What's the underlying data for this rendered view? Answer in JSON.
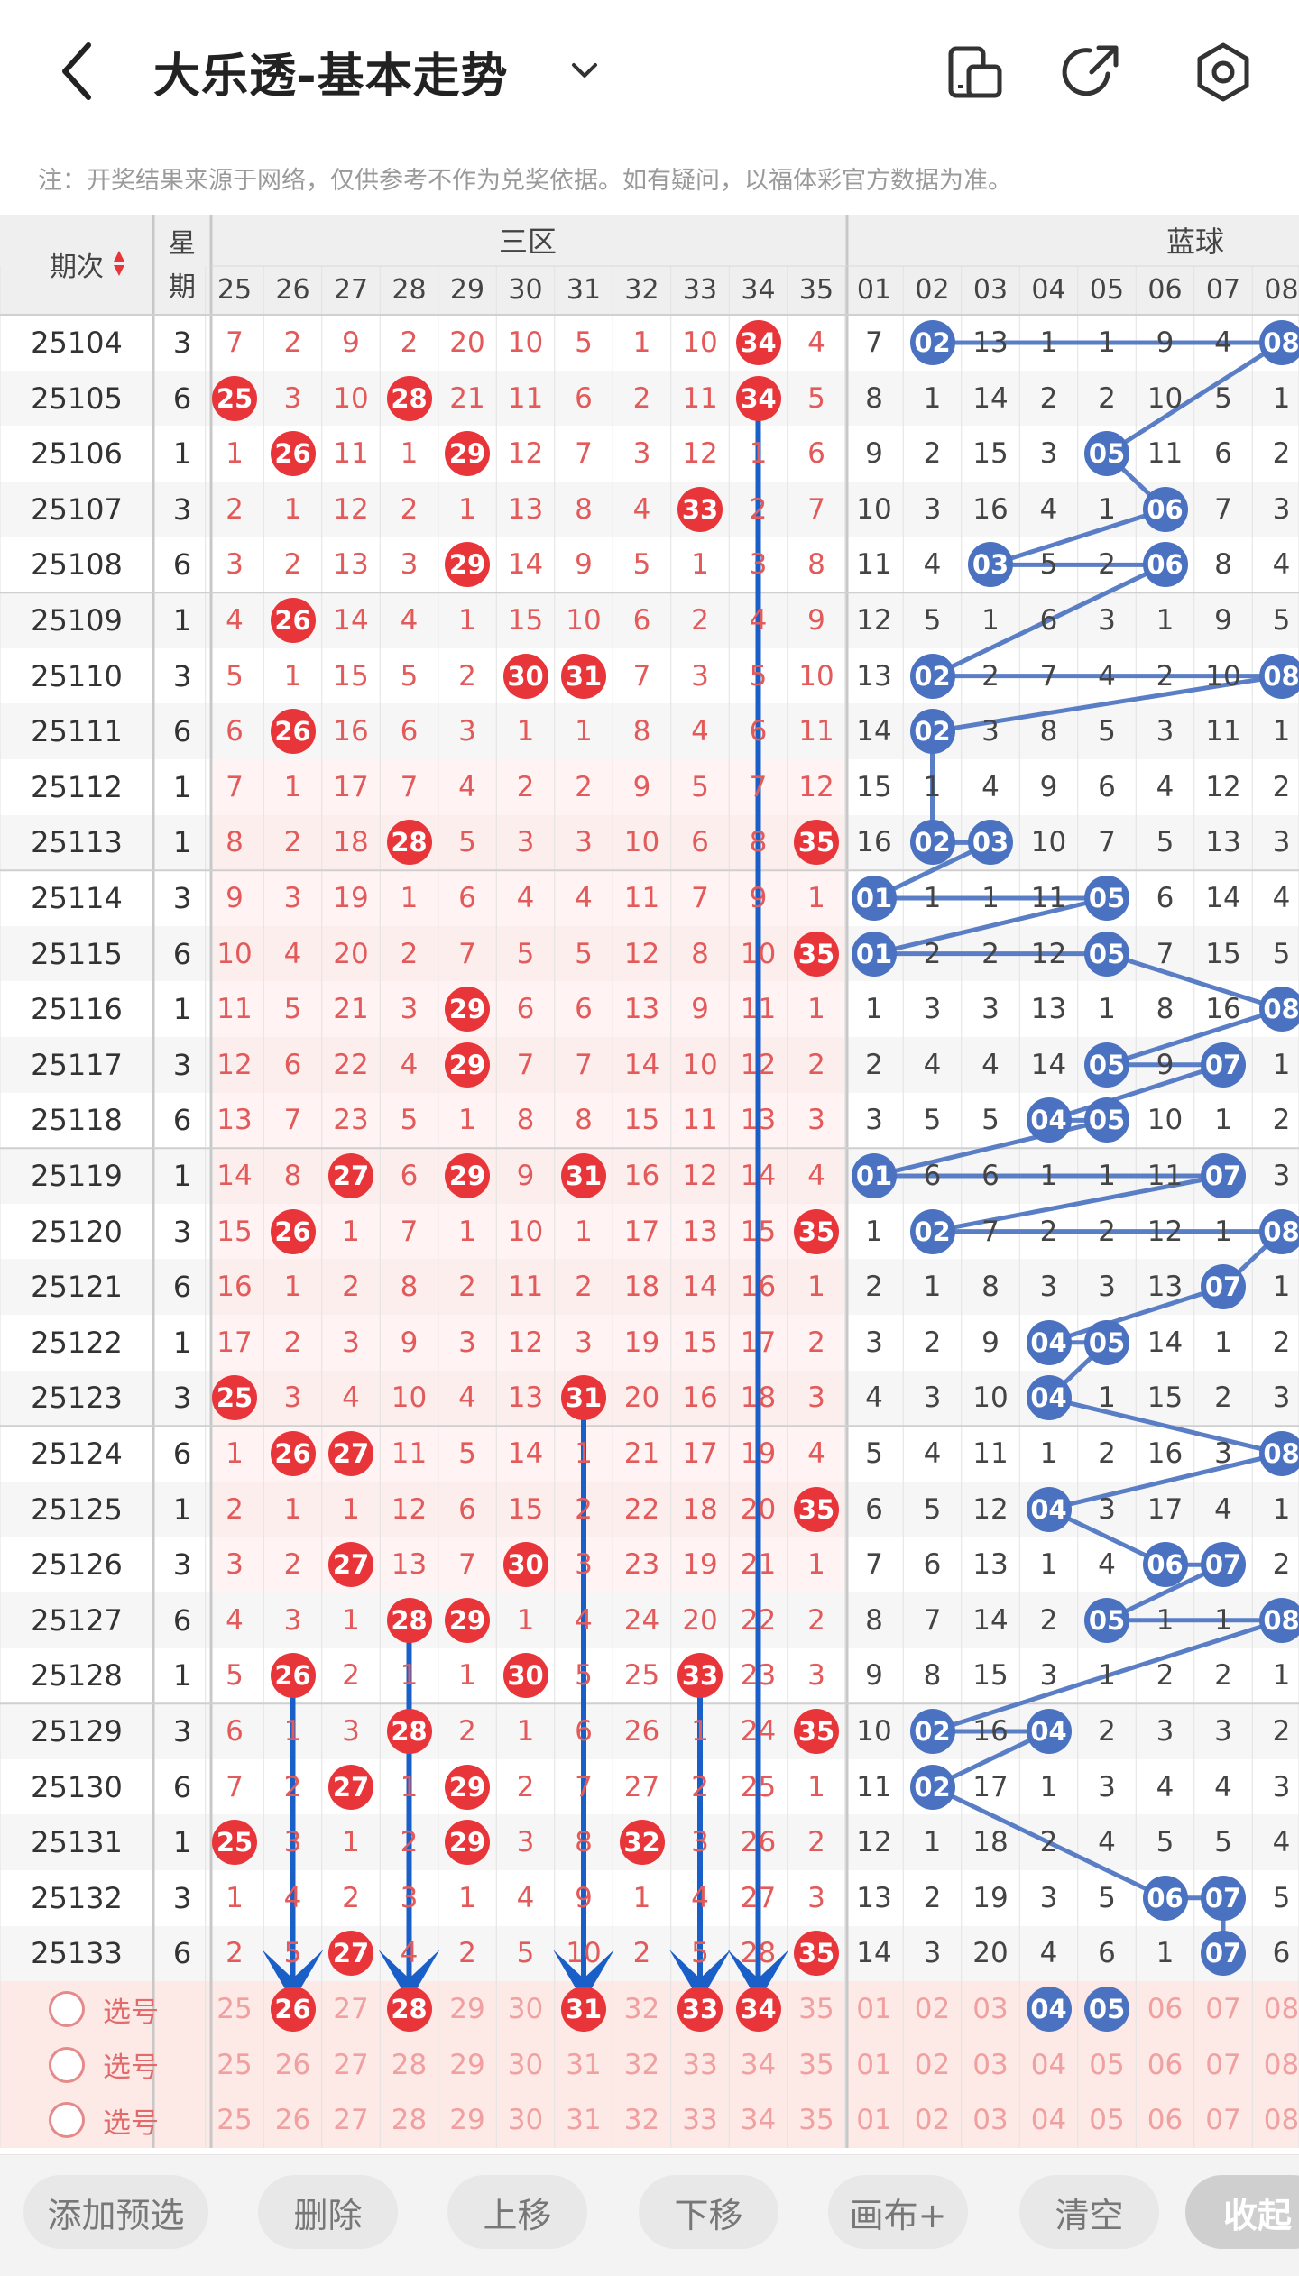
{
  "header": {
    "title": "大乐透-基本走势",
    "back_icon": "chevron-left-icon",
    "dropdown_icon": "chevron-down-icon",
    "icons": [
      "phone-rotate-icon",
      "share-icon",
      "settings-icon"
    ]
  },
  "notice": "注：开奖结果来源于网络，仅供参考不作为兑奖依据。如有疑问，以福体彩官方数据为准。",
  "table": {
    "period_header": "期次",
    "week_header": "星期",
    "section_front": "三区",
    "section_back": "蓝球",
    "front_cols": [
      "25",
      "26",
      "27",
      "28",
      "29",
      "30",
      "31",
      "32",
      "33",
      "34",
      "35"
    ],
    "back_cols": [
      "01",
      "02",
      "03",
      "04",
      "05",
      "06",
      "07",
      "08"
    ],
    "rows": [
      {
        "issue": "25104",
        "week": "3",
        "front": [
          "7",
          "2",
          "9",
          "2",
          "20",
          "10",
          "5",
          "1",
          "10",
          "34",
          "4"
        ],
        "back": [
          "7",
          "02",
          "13",
          "1",
          "1",
          "9",
          "4",
          "08"
        ]
      },
      {
        "issue": "25105",
        "week": "6",
        "front": [
          "25",
          "3",
          "10",
          "28",
          "21",
          "11",
          "6",
          "2",
          "11",
          "34",
          "5"
        ],
        "back": [
          "8",
          "1",
          "14",
          "2",
          "2",
          "10",
          "5",
          "1"
        ]
      },
      {
        "issue": "25106",
        "week": "1",
        "front": [
          "1",
          "26",
          "11",
          "1",
          "29",
          "12",
          "7",
          "3",
          "12",
          "1",
          "6"
        ],
        "back": [
          "9",
          "2",
          "15",
          "3",
          "05",
          "11",
          "6",
          "2"
        ]
      },
      {
        "issue": "25107",
        "week": "3",
        "front": [
          "2",
          "1",
          "12",
          "2",
          "1",
          "13",
          "8",
          "4",
          "33",
          "2",
          "7"
        ],
        "back": [
          "10",
          "3",
          "16",
          "4",
          "1",
          "06",
          "7",
          "3"
        ]
      },
      {
        "issue": "25108",
        "week": "6",
        "front": [
          "3",
          "2",
          "13",
          "3",
          "29",
          "14",
          "9",
          "5",
          "1",
          "3",
          "8"
        ],
        "back": [
          "11",
          "4",
          "03",
          "5",
          "2",
          "06",
          "8",
          "4"
        ]
      },
      {
        "issue": "25109",
        "week": "1",
        "front": [
          "4",
          "26",
          "14",
          "4",
          "1",
          "15",
          "10",
          "6",
          "2",
          "4",
          "9"
        ],
        "back": [
          "12",
          "5",
          "1",
          "6",
          "3",
          "1",
          "9",
          "5"
        ]
      },
      {
        "issue": "25110",
        "week": "3",
        "front": [
          "5",
          "1",
          "15",
          "5",
          "2",
          "30",
          "31",
          "7",
          "3",
          "5",
          "10"
        ],
        "back": [
          "13",
          "02",
          "2",
          "7",
          "4",
          "2",
          "10",
          "08"
        ]
      },
      {
        "issue": "25111",
        "week": "6",
        "front": [
          "6",
          "26",
          "16",
          "6",
          "3",
          "1",
          "1",
          "8",
          "4",
          "6",
          "11"
        ],
        "back": [
          "14",
          "02",
          "3",
          "8",
          "5",
          "3",
          "11",
          "1"
        ]
      },
      {
        "issue": "25112",
        "week": "1",
        "front": [
          "7",
          "1",
          "17",
          "7",
          "4",
          "2",
          "2",
          "9",
          "5",
          "7",
          "12"
        ],
        "back": [
          "15",
          "1",
          "4",
          "9",
          "6",
          "4",
          "12",
          "2"
        ]
      },
      {
        "issue": "25113",
        "week": "1",
        "front": [
          "8",
          "2",
          "18",
          "28",
          "5",
          "3",
          "3",
          "10",
          "6",
          "8",
          "35"
        ],
        "back": [
          "16",
          "02",
          "03",
          "10",
          "7",
          "5",
          "13",
          "3"
        ]
      },
      {
        "issue": "25114",
        "week": "3",
        "front": [
          "9",
          "3",
          "19",
          "1",
          "6",
          "4",
          "4",
          "11",
          "7",
          "9",
          "1"
        ],
        "back": [
          "01",
          "1",
          "1",
          "11",
          "05",
          "6",
          "14",
          "4"
        ]
      },
      {
        "issue": "25115",
        "week": "6",
        "front": [
          "10",
          "4",
          "20",
          "2",
          "7",
          "5",
          "5",
          "12",
          "8",
          "10",
          "35"
        ],
        "back": [
          "01",
          "2",
          "2",
          "12",
          "05",
          "7",
          "15",
          "5"
        ]
      },
      {
        "issue": "25116",
        "week": "1",
        "front": [
          "11",
          "5",
          "21",
          "3",
          "29",
          "6",
          "6",
          "13",
          "9",
          "11",
          "1"
        ],
        "back": [
          "1",
          "3",
          "3",
          "13",
          "1",
          "8",
          "16",
          "08"
        ]
      },
      {
        "issue": "25117",
        "week": "3",
        "front": [
          "12",
          "6",
          "22",
          "4",
          "29",
          "7",
          "7",
          "14",
          "10",
          "12",
          "2"
        ],
        "back": [
          "2",
          "4",
          "4",
          "14",
          "05",
          "9",
          "07",
          "1"
        ]
      },
      {
        "issue": "25118",
        "week": "6",
        "front": [
          "13",
          "7",
          "23",
          "5",
          "1",
          "8",
          "8",
          "15",
          "11",
          "13",
          "3"
        ],
        "back": [
          "3",
          "5",
          "5",
          "04",
          "05",
          "10",
          "1",
          "2"
        ]
      },
      {
        "issue": "25119",
        "week": "1",
        "front": [
          "14",
          "8",
          "27",
          "6",
          "29",
          "9",
          "31",
          "16",
          "12",
          "14",
          "4"
        ],
        "back": [
          "01",
          "6",
          "6",
          "1",
          "1",
          "11",
          "07",
          "3"
        ]
      },
      {
        "issue": "25120",
        "week": "3",
        "front": [
          "15",
          "26",
          "1",
          "7",
          "1",
          "10",
          "1",
          "17",
          "13",
          "15",
          "35"
        ],
        "back": [
          "1",
          "02",
          "7",
          "2",
          "2",
          "12",
          "1",
          "08"
        ]
      },
      {
        "issue": "25121",
        "week": "6",
        "front": [
          "16",
          "1",
          "2",
          "8",
          "2",
          "11",
          "2",
          "18",
          "14",
          "16",
          "1"
        ],
        "back": [
          "2",
          "1",
          "8",
          "3",
          "3",
          "13",
          "07",
          "1"
        ]
      },
      {
        "issue": "25122",
        "week": "1",
        "front": [
          "17",
          "2",
          "3",
          "9",
          "3",
          "12",
          "3",
          "19",
          "15",
          "17",
          "2"
        ],
        "back": [
          "3",
          "2",
          "9",
          "04",
          "05",
          "14",
          "1",
          "2"
        ]
      },
      {
        "issue": "25123",
        "week": "3",
        "front": [
          "25",
          "3",
          "4",
          "10",
          "4",
          "13",
          "31",
          "20",
          "16",
          "18",
          "3"
        ],
        "back": [
          "4",
          "3",
          "10",
          "04",
          "1",
          "15",
          "2",
          "3"
        ]
      },
      {
        "issue": "25124",
        "week": "6",
        "front": [
          "1",
          "26",
          "27",
          "11",
          "5",
          "14",
          "1",
          "21",
          "17",
          "19",
          "4"
        ],
        "back": [
          "5",
          "4",
          "11",
          "1",
          "2",
          "16",
          "3",
          "08"
        ]
      },
      {
        "issue": "25125",
        "week": "1",
        "front": [
          "2",
          "1",
          "1",
          "12",
          "6",
          "15",
          "2",
          "22",
          "18",
          "20",
          "35"
        ],
        "back": [
          "6",
          "5",
          "12",
          "04",
          "3",
          "17",
          "4",
          "1"
        ]
      },
      {
        "issue": "25126",
        "week": "3",
        "front": [
          "3",
          "2",
          "27",
          "13",
          "7",
          "30",
          "3",
          "23",
          "19",
          "21",
          "1"
        ],
        "back": [
          "7",
          "6",
          "13",
          "1",
          "4",
          "06",
          "07",
          "2"
        ]
      },
      {
        "issue": "25127",
        "week": "6",
        "front": [
          "4",
          "3",
          "1",
          "28",
          "29",
          "1",
          "4",
          "24",
          "20",
          "22",
          "2"
        ],
        "back": [
          "8",
          "7",
          "14",
          "2",
          "05",
          "1",
          "1",
          "08"
        ]
      },
      {
        "issue": "25128",
        "week": "1",
        "front": [
          "5",
          "26",
          "2",
          "1",
          "1",
          "30",
          "5",
          "25",
          "33",
          "23",
          "3"
        ],
        "back": [
          "9",
          "8",
          "15",
          "3",
          "1",
          "2",
          "2",
          "1"
        ]
      },
      {
        "issue": "25129",
        "week": "3",
        "front": [
          "6",
          "1",
          "3",
          "28",
          "2",
          "1",
          "6",
          "26",
          "1",
          "24",
          "35"
        ],
        "back": [
          "10",
          "02",
          "16",
          "04",
          "2",
          "3",
          "3",
          "2"
        ]
      },
      {
        "issue": "25130",
        "week": "6",
        "front": [
          "7",
          "2",
          "27",
          "1",
          "29",
          "2",
          "7",
          "27",
          "2",
          "25",
          "1"
        ],
        "back": [
          "11",
          "02",
          "17",
          "1",
          "3",
          "4",
          "4",
          "3"
        ]
      },
      {
        "issue": "25131",
        "week": "1",
        "front": [
          "25",
          "3",
          "1",
          "2",
          "29",
          "3",
          "8",
          "32",
          "3",
          "26",
          "2"
        ],
        "back": [
          "12",
          "1",
          "18",
          "2",
          "4",
          "5",
          "5",
          "4"
        ]
      },
      {
        "issue": "25132",
        "week": "3",
        "front": [
          "1",
          "4",
          "2",
          "3",
          "1",
          "4",
          "9",
          "1",
          "4",
          "27",
          "3"
        ],
        "back": [
          "13",
          "2",
          "19",
          "3",
          "5",
          "06",
          "07",
          "5"
        ]
      },
      {
        "issue": "25133",
        "week": "6",
        "front": [
          "2",
          "5",
          "27",
          "4",
          "2",
          "5",
          "10",
          "2",
          "5",
          "28",
          "35"
        ],
        "back": [
          "14",
          "3",
          "20",
          "4",
          "6",
          "1",
          "07",
          "6"
        ]
      }
    ],
    "select_label": "选号",
    "select_rows": [
      {
        "front_sel": [
          "26",
          "28",
          "31",
          "33",
          "34"
        ],
        "back_sel": [
          "04",
          "05"
        ]
      },
      {
        "front_sel": [],
        "back_sel": []
      },
      {
        "front_sel": [],
        "back_sel": []
      }
    ]
  },
  "toolbar": {
    "buttons": [
      "添加预选",
      "删除",
      "上移",
      "下移",
      "画布+",
      "清空",
      "收起"
    ]
  },
  "colors": {
    "red_ball": "#e8353a",
    "blue_ball": "#4a72c0",
    "line_blue": "#5a7ec6",
    "arrow_blue": "#1a5fc8",
    "miss_red": "#e35a5a"
  }
}
